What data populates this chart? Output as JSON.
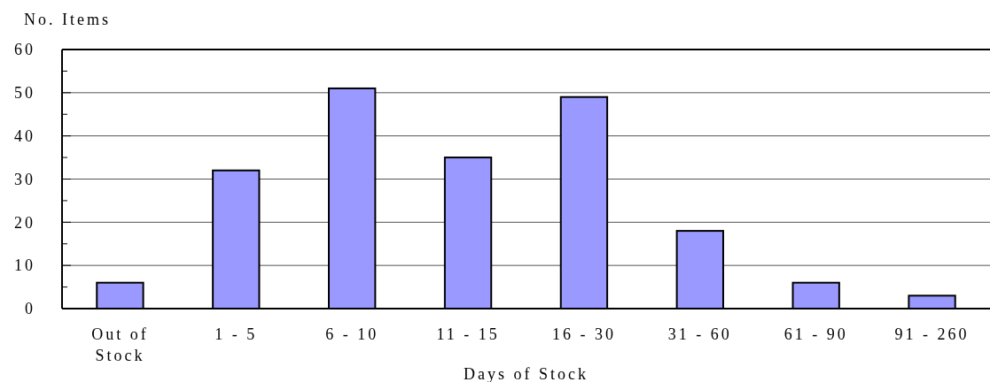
{
  "chart_data": {
    "type": "bar",
    "categories": [
      "Out of Stock",
      "1 - 5",
      "6 - 10",
      "11 - 15",
      "16 - 30",
      "31 - 60",
      "61 - 90",
      "91 - 260"
    ],
    "values": [
      6,
      32,
      51,
      35,
      49,
      18,
      6,
      3
    ],
    "color": "#9999ff",
    "ylabel": "No. Items",
    "xlabel": "Days of Stock",
    "ylim": [
      0,
      60
    ],
    "yticks": [
      0,
      {
        "value": 5,
        "label": null
      },
      10,
      {
        "value": 15,
        "label": null
      },
      20,
      {
        "value": 25,
        "label": null
      },
      30,
      {
        "value": 35,
        "label": null
      },
      40,
      {
        "value": 45,
        "label": null
      },
      50,
      {
        "value": 55,
        "label": null
      },
      60
    ],
    "grid": "y"
  }
}
